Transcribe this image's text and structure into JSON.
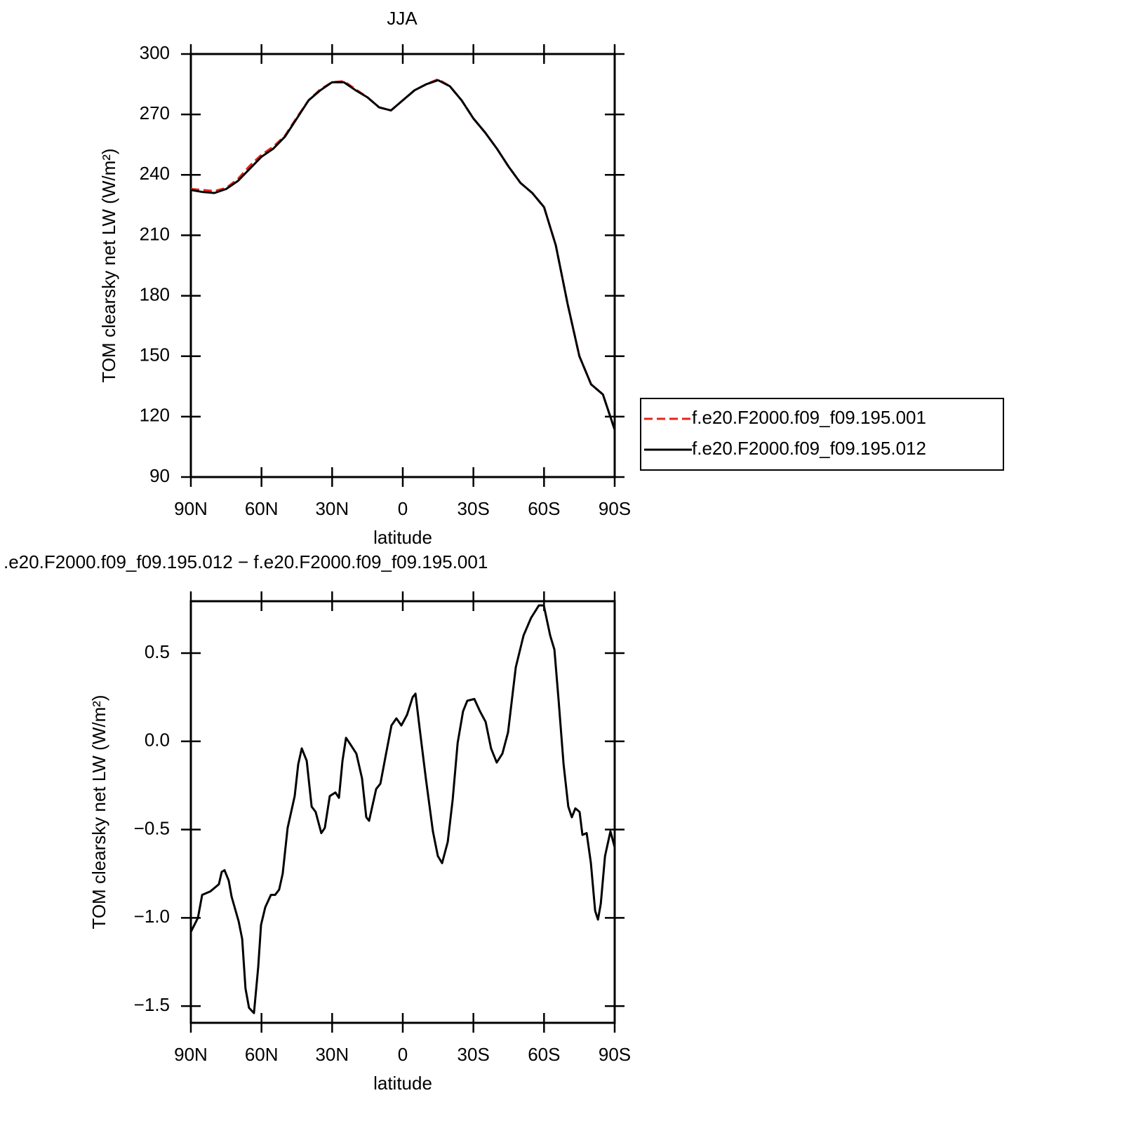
{
  "chart_data": [
    {
      "type": "line",
      "title": "JJA",
      "xlabel": "latitude",
      "ylabel": "TOM clearsky net LW (W/m²)",
      "x": [
        90,
        85,
        80,
        75,
        70,
        65,
        60,
        55,
        50,
        45,
        40,
        35,
        30,
        25,
        20,
        15,
        10,
        5,
        0,
        -5,
        -10,
        -15,
        -20,
        -25,
        -30,
        -35,
        -40,
        -45,
        -50,
        -55,
        -60,
        -65,
        -70,
        -75,
        -80,
        -85,
        -90
      ],
      "series": [
        {
          "name": "f.e20.F2000.f09_f09.195.001",
          "color": "#e8221c",
          "dashed": true,
          "values": [
            233,
            232.5,
            232,
            233.5,
            238,
            244.5,
            250,
            254,
            259.5,
            268.5,
            277,
            282.5,
            286,
            286.5,
            282.5,
            278.5,
            273.5,
            272,
            277,
            282,
            285,
            287.5,
            284,
            277,
            268,
            261,
            253,
            244,
            236,
            231,
            224,
            205,
            176,
            150,
            136,
            131,
            113.5
          ]
        },
        {
          "name": "f.e20.F2000.f09_f09.195.012",
          "color": "#000000",
          "dashed": false,
          "values": [
            232.5,
            231.5,
            231,
            233,
            237,
            243,
            249,
            253,
            259,
            268,
            277,
            282,
            286,
            286,
            282,
            278.5,
            273.5,
            272,
            277,
            282,
            285,
            287,
            284,
            277,
            268,
            261,
            253,
            244,
            236,
            231,
            224,
            205,
            176,
            150,
            136,
            131,
            113.5
          ]
        }
      ],
      "xlim": [
        90,
        -90
      ],
      "ylim": [
        90,
        300
      ],
      "xticks": [
        {
          "value": 90,
          "label": "90N"
        },
        {
          "value": 60,
          "label": "60N"
        },
        {
          "value": 30,
          "label": "30N"
        },
        0,
        {
          "value": -30,
          "label": "30S"
        },
        {
          "value": -60,
          "label": "60S"
        },
        {
          "value": -90,
          "label": "90S"
        }
      ],
      "yticks": [
        90,
        120,
        150,
        180,
        210,
        240,
        270,
        300
      ],
      "legend": "right"
    },
    {
      "type": "line",
      "title": ".e20.F2000.f09_f09.195.012 − f.e20.F2000.f09_f09.195.001",
      "xlabel": "latitude",
      "ylabel": "TOM clearsky net LW (W/m²)",
      "x": [
        90,
        87,
        85.2,
        81.7,
        78.1,
        76.9,
        75.7,
        73.9,
        72.7,
        69.7,
        68.2,
        66.8,
        65.3,
        63.2,
        61.4,
        60.2,
        58.4,
        56,
        54.2,
        52.5,
        51,
        48.9,
        45.9,
        44.4,
        42.9,
        40.8,
        38.7,
        37,
        34.6,
        33.1,
        31,
        28.6,
        27.1,
        25.6,
        24.1,
        22.1,
        19.7,
        17.3,
        15.5,
        14.3,
        11.3,
        9.5,
        7.1,
        4.8,
        2.7,
        0.6,
        -1.8,
        -4.2,
        -5.4,
        -7.2,
        -9.8,
        -12.8,
        -14.9,
        -16.7,
        -19.1,
        -21.2,
        -23.3,
        -25.6,
        -27.4,
        -30.4,
        -32.8,
        -35.2,
        -37.5,
        -39.9,
        -42.3,
        -44.7,
        -48,
        -51.3,
        -54.5,
        -57.8,
        -59.9,
        -62.6,
        -64.4,
        -66.2,
        -68.3,
        -70.3,
        -71.8,
        -73.3,
        -75.1,
        -76.3,
        -78.1,
        -79.9,
        -81.7,
        -82.9,
        -84.1,
        -85.9,
        -88.2,
        -90
      ],
      "series": [
        {
          "color": "#000000",
          "dashed": false,
          "values": [
            -1.08,
            -1,
            -0.87,
            -0.85,
            -0.81,
            -0.74,
            -0.73,
            -0.79,
            -0.88,
            -1.02,
            -1.12,
            -1.4,
            -1.51,
            -1.54,
            -1.28,
            -1.04,
            -0.94,
            -0.87,
            -0.87,
            -0.84,
            -0.75,
            -0.49,
            -0.31,
            -0.13,
            -0.04,
            -0.11,
            -0.37,
            -0.4,
            -0.52,
            -0.49,
            -0.31,
            -0.29,
            -0.32,
            -0.11,
            0.02,
            -0.02,
            -0.07,
            -0.21,
            -0.43,
            -0.45,
            -0.27,
            -0.24,
            -0.07,
            0.09,
            0.13,
            0.09,
            0.15,
            0.25,
            0.27,
            0.07,
            -0.21,
            -0.51,
            -0.65,
            -0.69,
            -0.57,
            -0.33,
            -0.01,
            0.17,
            0.23,
            0.24,
            0.17,
            0.11,
            -0.04,
            -0.12,
            -0.07,
            0.05,
            0.42,
            0.6,
            0.7,
            0.77,
            0.77,
            0.6,
            0.52,
            0.23,
            -0.13,
            -0.37,
            -0.43,
            -0.38,
            -0.4,
            -0.53,
            -0.52,
            -0.69,
            -0.96,
            -1.01,
            -0.92,
            -0.65,
            -0.51,
            -0.6
          ]
        }
      ],
      "xlim": [
        90,
        -90
      ],
      "ylim": [
        -1.595,
        0.794
      ],
      "xticks": [
        {
          "value": 90,
          "label": "90N"
        },
        {
          "value": 60,
          "label": "60N"
        },
        {
          "value": 30,
          "label": "30N"
        },
        0,
        {
          "value": -30,
          "label": "30S"
        },
        {
          "value": -60,
          "label": "60S"
        },
        {
          "value": -90,
          "label": "90S"
        }
      ],
      "yticks": [
        {
          "value": -1.5,
          "label": "−1.5"
        },
        {
          "value": -1,
          "label": "−1.0"
        },
        {
          "value": -0.5,
          "label": "−0.5"
        },
        {
          "value": 0,
          "label": "0.0"
        },
        0.5
      ]
    }
  ]
}
